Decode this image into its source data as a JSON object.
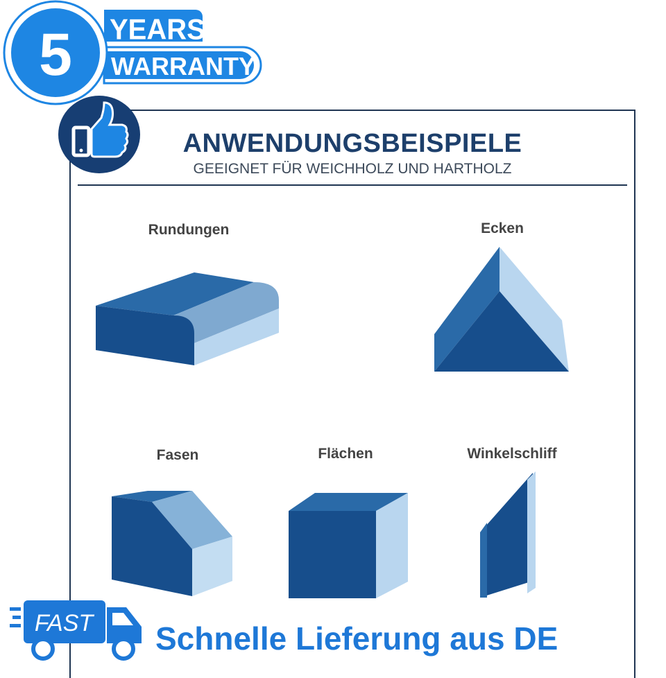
{
  "badge": {
    "number": "5",
    "line1": "YEARS",
    "line2": "WARRANTY"
  },
  "header": {
    "title": "ANWENDUNGSBEISPIELE",
    "subtitle": "GEEIGNET FÜR WEICHHOLZ UND HARTHOLZ"
  },
  "examples": {
    "rundungen": "Rundungen",
    "ecken": "Ecken",
    "fasen": "Fasen",
    "flaechen": "Flächen",
    "winkelschliff": "Winkelschliff"
  },
  "delivery": {
    "fast": "FAST",
    "text": "Schnelle Lieferung aus DE"
  },
  "colors": {
    "dark": "#174e8c",
    "mid": "#2a6aa8",
    "light": "#a9ccea",
    "lighter": "#cfe3f4",
    "accent": "#1e78d7"
  }
}
